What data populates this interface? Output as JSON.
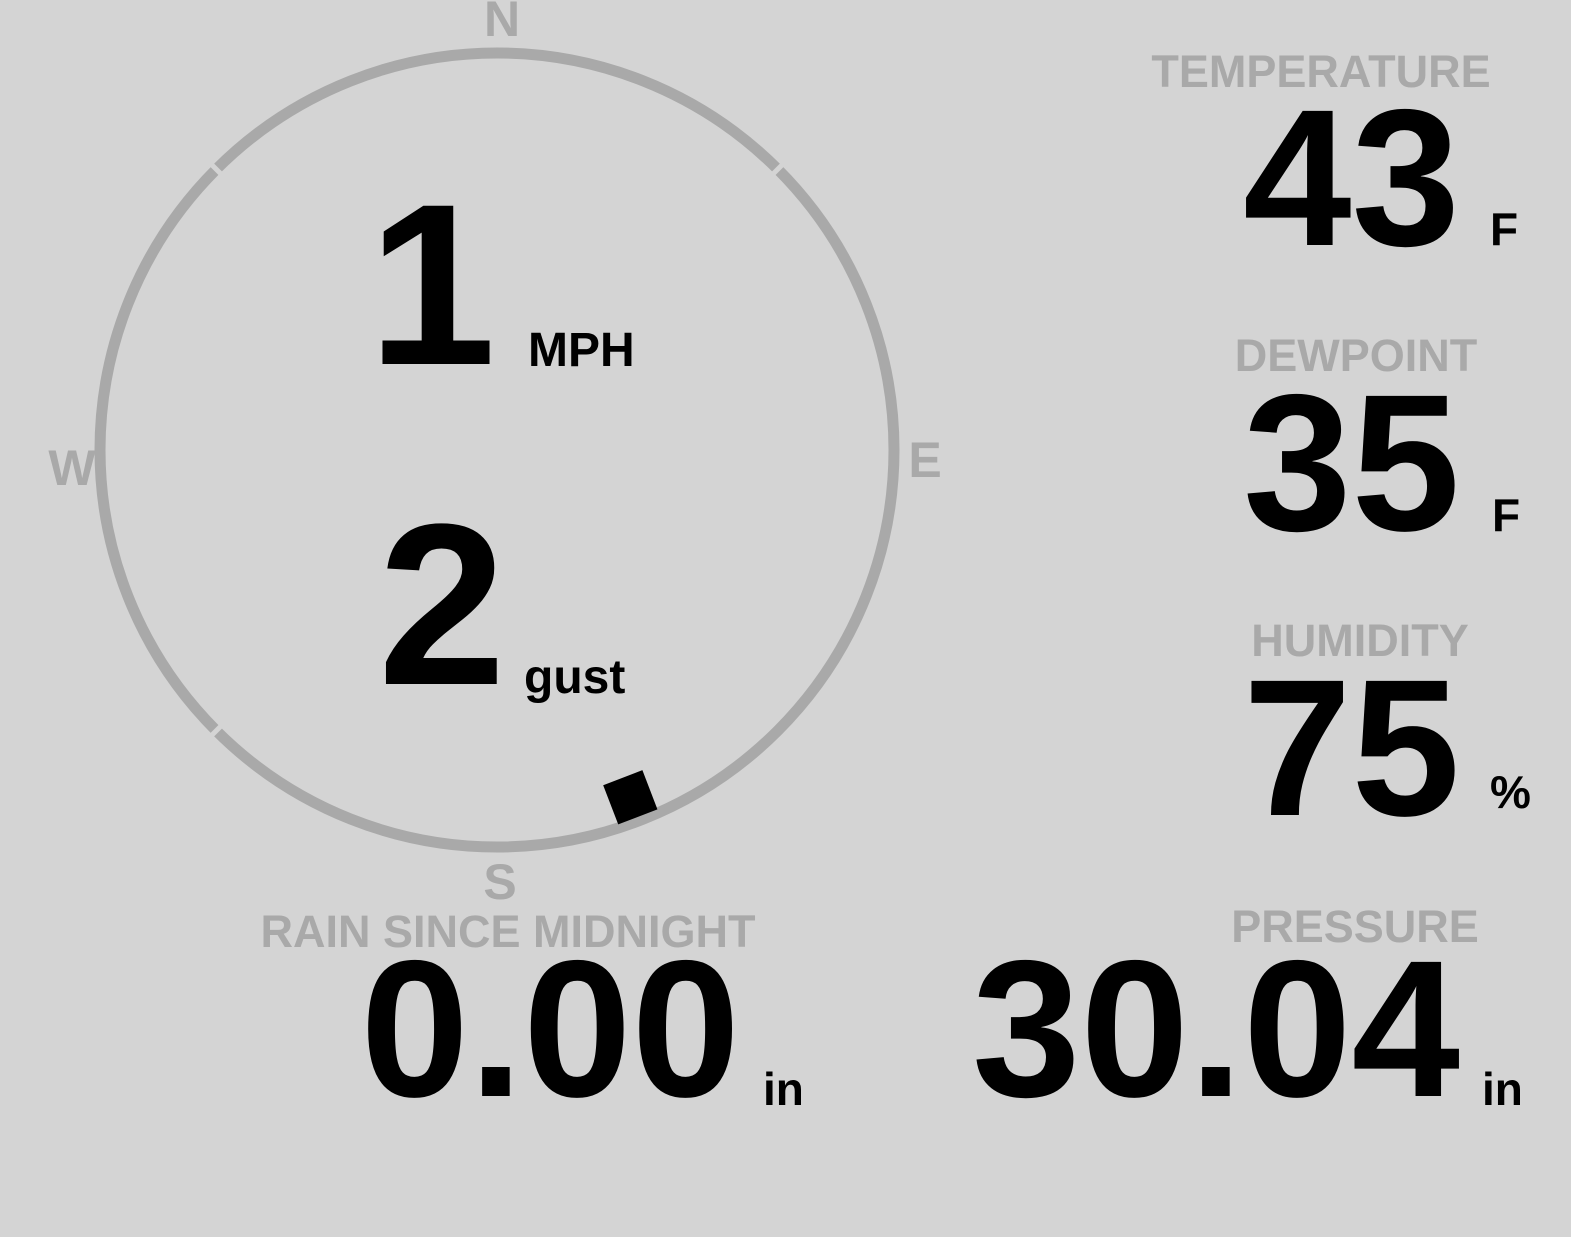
{
  "theme": {
    "background": "#d4d4d4",
    "muted": "#a9a9a9",
    "foreground": "#000000"
  },
  "compass": {
    "north_label": "N",
    "east_label": "E",
    "south_label": "S",
    "west_label": "W",
    "speed_value": "1",
    "speed_unit": "MPH",
    "gust_value": "2",
    "gust_unit": "gust",
    "wind_direction_deg": 159
  },
  "metrics": {
    "temperature": {
      "label": "TEMPERATURE",
      "value": "43",
      "unit": "F"
    },
    "dewpoint": {
      "label": "DEWPOINT",
      "value": "35",
      "unit": "F"
    },
    "humidity": {
      "label": "HUMIDITY",
      "value": "75",
      "unit": "%"
    },
    "rain": {
      "label": "RAIN SINCE MIDNIGHT",
      "value": "0.00",
      "unit": "in"
    },
    "pressure": {
      "label": "PRESSURE",
      "value": "30.04",
      "unit": "in"
    }
  }
}
